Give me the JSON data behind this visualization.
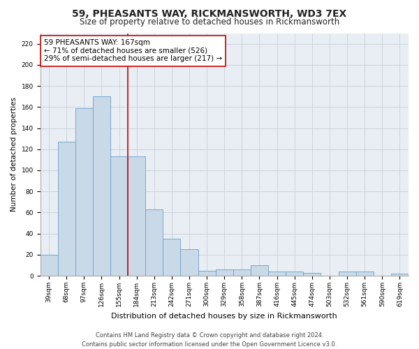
{
  "title": "59, PHEASANTS WAY, RICKMANSWORTH, WD3 7EX",
  "subtitle": "Size of property relative to detached houses in Rickmansworth",
  "xlabel": "Distribution of detached houses by size in Rickmansworth",
  "ylabel": "Number of detached properties",
  "categories": [
    "39sqm",
    "68sqm",
    "97sqm",
    "126sqm",
    "155sqm",
    "184sqm",
    "213sqm",
    "242sqm",
    "271sqm",
    "300sqm",
    "329sqm",
    "358sqm",
    "387sqm",
    "416sqm",
    "445sqm",
    "474sqm",
    "503sqm",
    "532sqm",
    "561sqm",
    "590sqm",
    "619sqm"
  ],
  "values": [
    20,
    127,
    159,
    170,
    113,
    113,
    63,
    35,
    25,
    5,
    6,
    6,
    10,
    4,
    4,
    3,
    0,
    4,
    4,
    0,
    2
  ],
  "bar_color": "#c9d9e8",
  "bar_edge_color": "#6aa0c7",
  "vline_x": 4.5,
  "vline_color": "#cc0000",
  "annotation_text": "59 PHEASANTS WAY: 167sqm\n← 71% of detached houses are smaller (526)\n29% of semi-detached houses are larger (217) →",
  "annotation_box_color": "#ffffff",
  "annotation_box_edge": "#cc0000",
  "ylim": [
    0,
    230
  ],
  "yticks": [
    0,
    20,
    40,
    60,
    80,
    100,
    120,
    140,
    160,
    180,
    200,
    220
  ],
  "grid_color": "#c8d0d8",
  "background_color": "#e8eef4",
  "footer": "Contains HM Land Registry data © Crown copyright and database right 2024.\nContains public sector information licensed under the Open Government Licence v3.0.",
  "title_fontsize": 10,
  "subtitle_fontsize": 8.5,
  "xlabel_fontsize": 8,
  "ylabel_fontsize": 7.5,
  "tick_fontsize": 6.5,
  "annotation_fontsize": 7.5,
  "footer_fontsize": 6
}
